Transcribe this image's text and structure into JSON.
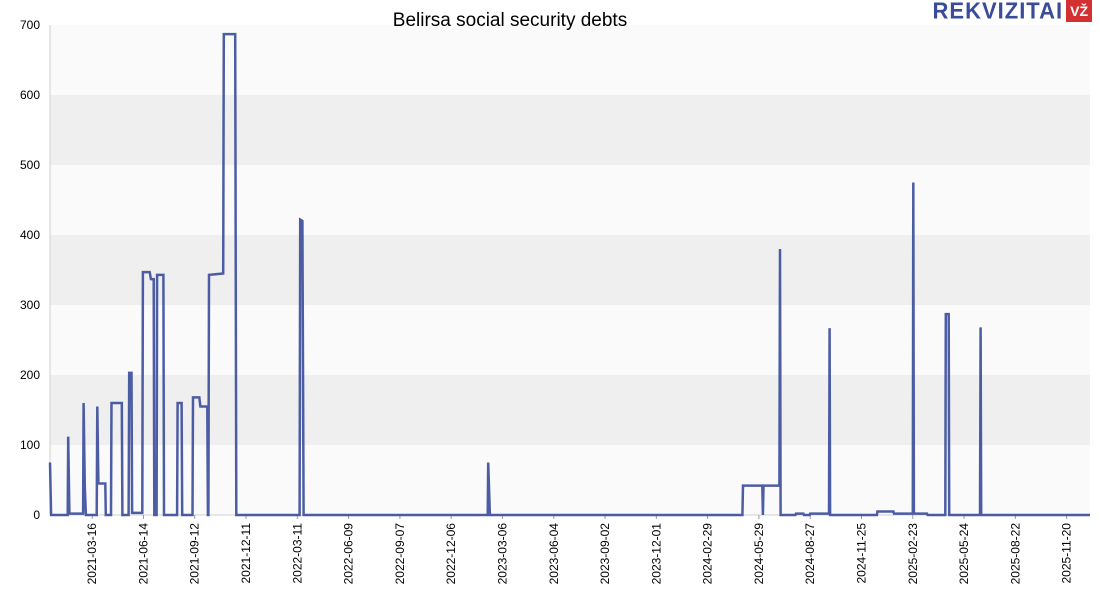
{
  "header": {
    "logo_text": "REKVIZITAI",
    "logo_badge": "VŽ"
  },
  "chart_data": {
    "type": "line",
    "title": "Belirsa social security debts",
    "xlabel": "",
    "ylabel": "",
    "ylim": [
      0,
      700
    ],
    "yticks": [
      0,
      100,
      200,
      300,
      400,
      500,
      600,
      700
    ],
    "xlim": [
      "2021-01-01",
      "2025-12-31"
    ],
    "xtick_labels": [
      "2021-03-16",
      "2021-06-14",
      "2021-09-12",
      "2021-12-11",
      "2022-03-11",
      "2022-06-09",
      "2022-09-07",
      "2022-12-06",
      "2023-03-06",
      "2023-06-04",
      "2023-09-02",
      "2023-12-01",
      "2024-02-29",
      "2024-05-29",
      "2024-08-27",
      "2024-11-25",
      "2025-02-23",
      "2025-05-24",
      "2025-08-22",
      "2025-11-20"
    ],
    "grid": true,
    "legend": "none",
    "line_color": "#3a4b9a",
    "band_color": "#efefef",
    "series": [
      {
        "name": "",
        "points": [
          [
            "2021-01-01",
            75
          ],
          [
            "2021-01-03",
            0
          ],
          [
            "2021-02-01",
            0
          ],
          [
            "2021-02-02",
            112
          ],
          [
            "2021-02-04",
            2
          ],
          [
            "2021-02-28",
            2
          ],
          [
            "2021-03-01",
            160
          ],
          [
            "2021-03-03",
            40
          ],
          [
            "2021-03-05",
            0
          ],
          [
            "2021-03-24",
            0
          ],
          [
            "2021-03-25",
            155
          ],
          [
            "2021-03-27",
            45
          ],
          [
            "2021-04-08",
            45
          ],
          [
            "2021-04-09",
            0
          ],
          [
            "2021-04-18",
            0
          ],
          [
            "2021-04-19",
            160
          ],
          [
            "2021-05-07",
            160
          ],
          [
            "2021-05-08",
            0
          ],
          [
            "2021-05-19",
            0
          ],
          [
            "2021-05-20",
            203
          ],
          [
            "2021-05-24",
            203
          ],
          [
            "2021-05-25",
            3
          ],
          [
            "2021-06-12",
            3
          ],
          [
            "2021-06-13",
            347
          ],
          [
            "2021-06-25",
            347
          ],
          [
            "2021-06-27",
            337
          ],
          [
            "2021-07-02",
            337
          ],
          [
            "2021-07-03",
            0
          ],
          [
            "2021-07-07",
            0
          ],
          [
            "2021-07-08",
            343
          ],
          [
            "2021-07-19",
            343
          ],
          [
            "2021-07-20",
            0
          ],
          [
            "2021-08-12",
            0
          ],
          [
            "2021-08-13",
            160
          ],
          [
            "2021-08-20",
            160
          ],
          [
            "2021-08-21",
            0
          ],
          [
            "2021-09-08",
            0
          ],
          [
            "2021-09-09",
            168
          ],
          [
            "2021-09-20",
            168
          ],
          [
            "2021-09-22",
            155
          ],
          [
            "2021-10-04",
            155
          ],
          [
            "2021-10-05",
            0
          ],
          [
            "2021-10-06",
            0
          ],
          [
            "2021-10-07",
            343
          ],
          [
            "2021-11-01",
            345
          ],
          [
            "2021-11-02",
            687
          ],
          [
            "2021-11-22",
            687
          ],
          [
            "2021-11-24",
            0
          ],
          [
            "2022-03-15",
            0
          ],
          [
            "2022-03-16",
            422
          ],
          [
            "2022-03-20",
            420
          ],
          [
            "2022-03-22",
            0
          ],
          [
            "2023-02-08",
            0
          ],
          [
            "2023-02-09",
            75
          ],
          [
            "2023-02-12",
            0
          ],
          [
            "2024-04-30",
            0
          ],
          [
            "2024-05-01",
            42
          ],
          [
            "2024-06-04",
            42
          ],
          [
            "2024-06-05",
            0
          ],
          [
            "2024-06-06",
            42
          ],
          [
            "2024-07-04",
            42
          ],
          [
            "2024-07-05",
            380
          ],
          [
            "2024-07-06",
            0
          ],
          [
            "2024-08-01",
            0
          ],
          [
            "2024-08-02",
            2
          ],
          [
            "2024-08-15",
            2
          ],
          [
            "2024-08-16",
            0
          ],
          [
            "2024-08-26",
            0
          ],
          [
            "2024-08-27",
            2
          ],
          [
            "2024-09-29",
            2
          ],
          [
            "2024-09-30",
            267
          ],
          [
            "2024-10-01",
            0
          ],
          [
            "2024-12-22",
            0
          ],
          [
            "2024-12-23",
            5
          ],
          [
            "2025-01-20",
            5
          ],
          [
            "2025-01-21",
            2
          ],
          [
            "2025-02-23",
            2
          ],
          [
            "2025-02-24",
            475
          ],
          [
            "2025-02-25",
            2
          ],
          [
            "2025-03-20",
            2
          ],
          [
            "2025-03-21",
            0
          ],
          [
            "2025-04-21",
            0
          ],
          [
            "2025-04-22",
            287
          ],
          [
            "2025-04-27",
            287
          ],
          [
            "2025-04-28",
            0
          ],
          [
            "2025-06-21",
            0
          ],
          [
            "2025-06-22",
            268
          ],
          [
            "2025-06-23",
            0
          ],
          [
            "2025-12-31",
            0
          ]
        ]
      }
    ]
  }
}
